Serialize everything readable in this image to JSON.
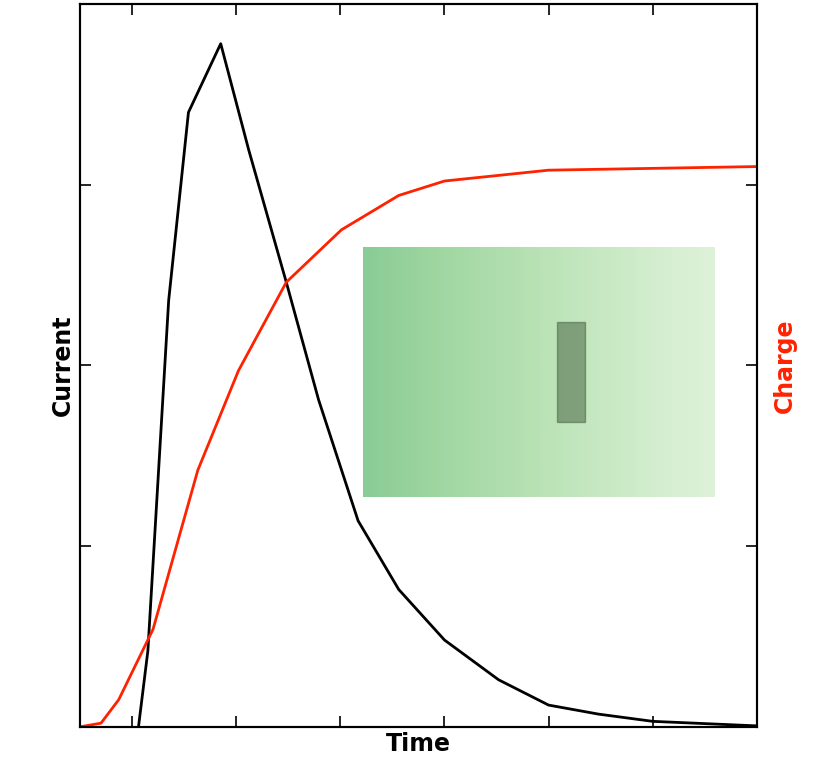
{
  "chart_data": {
    "type": "line",
    "x_label": "Time",
    "y_label": "Current",
    "y2_label": "Charge",
    "xlim": [
      -0.5,
      6
    ],
    "xticks": [
      0,
      1,
      2,
      3,
      4,
      5,
      6
    ],
    "ylim": [
      0,
      4
    ],
    "yticks": [
      0,
      1,
      2,
      3,
      4
    ],
    "y2lim": [
      0,
      4
    ],
    "y2ticks": [
      0,
      1,
      2,
      3,
      4
    ],
    "tick_labels": false,
    "grid": false,
    "series": [
      {
        "name": "Current",
        "color": "#000000",
        "axis": "y",
        "x": [
          0.06,
          0.15,
          0.35,
          0.54,
          0.85,
          1.12,
          1.48,
          1.79,
          2.17,
          2.56,
          3.0,
          3.52,
          4.0,
          4.48,
          5.0,
          6.0
        ],
        "values": [
          0,
          0.42,
          2.36,
          3.4,
          3.78,
          3.19,
          2.46,
          1.81,
          1.14,
          0.76,
          0.48,
          0.26,
          0.12,
          0.07,
          0.03,
          0.005
        ]
      },
      {
        "name": "Charge",
        "color": "#ff2200",
        "axis": "y2",
        "x": [
          -0.5,
          -0.3,
          -0.13,
          0.2,
          0.63,
          1.02,
          1.48,
          2.01,
          2.56,
          3.0,
          4.0,
          5.0,
          6.0
        ],
        "values": [
          0,
          0.02,
          0.15,
          0.54,
          1.42,
          1.97,
          2.46,
          2.75,
          2.94,
          3.02,
          3.08,
          3.09,
          3.1
        ]
      }
    ]
  }
}
